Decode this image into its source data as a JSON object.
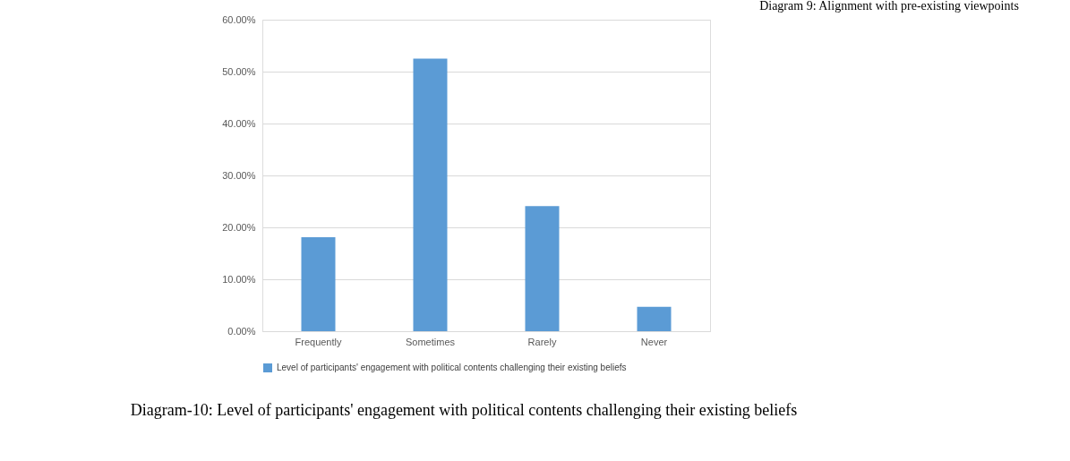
{
  "chart_data": {
    "type": "bar",
    "categories": [
      "Frequently",
      "Sometimes",
      "Rarely",
      "Never"
    ],
    "series": [
      {
        "name": "Level of participants' engagement with political contents challenging their existing beliefs",
        "color": "#5b9bd5",
        "values": [
          18.1,
          52.5,
          24.1,
          4.7
        ]
      }
    ],
    "ylim": [
      0,
      60
    ],
    "yticks": [
      {
        "value": 0,
        "label": "0.00%"
      },
      {
        "value": 10,
        "label": "10.00%"
      },
      {
        "value": 20,
        "label": "20.00%"
      },
      {
        "value": 30,
        "label": "30.00%"
      },
      {
        "value": 40,
        "label": "40.00%"
      },
      {
        "value": 50,
        "label": "50.00%"
      },
      {
        "value": 60,
        "label": "60.00%"
      }
    ],
    "grid": "y",
    "legend": "bottom",
    "annotations": [
      "Diagram 9: Alignment with pre-existing viewpoints",
      "Diagram-10: Level of participants' engagement with political contents challenging their existing beliefs"
    ]
  }
}
